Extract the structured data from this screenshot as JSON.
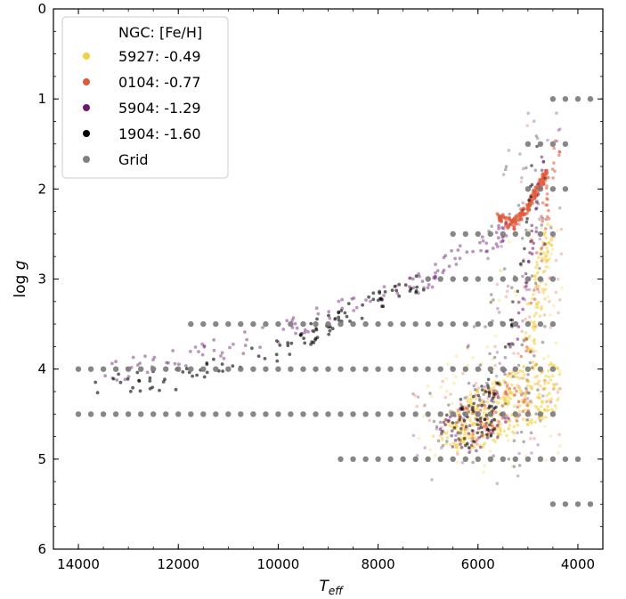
{
  "chart_data": {
    "type": "scatter",
    "xlabel_base": "T",
    "xlabel_sub": "eff",
    "ylabel_base": "log ",
    "ylabel_var": "g",
    "xlim": [
      14500,
      3500
    ],
    "ylim": [
      0,
      6
    ],
    "x_ticks": [
      14000,
      12000,
      10000,
      8000,
      6000,
      4000
    ],
    "y_ticks": [
      0,
      1,
      2,
      3,
      4,
      5,
      6
    ],
    "grid": false,
    "legend": {
      "position": "top-left",
      "title": "NGC: [Fe/H]",
      "entries": [
        {
          "label": "5927: -0.49",
          "color": "#f4d03f"
        },
        {
          "label": "0104: -0.77",
          "color": "#e05a3a"
        },
        {
          "label": "5904: -1.29",
          "color": "#6a1b6e"
        },
        {
          "label": "1904: -1.60",
          "color": "#000000"
        },
        {
          "label": "Grid",
          "color": "#808080"
        }
      ]
    },
    "grid_points": [
      {
        "logg": 1.0,
        "teff": [
          4500,
          4250,
          4000,
          3750
        ]
      },
      {
        "logg": 1.5,
        "teff": [
          5000,
          4750,
          4500,
          4250
        ]
      },
      {
        "logg": 2.0,
        "teff": [
          5000,
          4750,
          4500,
          4250
        ]
      },
      {
        "logg": 2.5,
        "teff": [
          6500,
          6250,
          6000,
          5750,
          5500,
          5250,
          5000,
          4750,
          4500
        ]
      },
      {
        "logg": 3.0,
        "teff": [
          7000,
          6750,
          6500,
          6250,
          6000,
          5750,
          5500,
          5250,
          5000,
          4750,
          4500
        ]
      },
      {
        "logg": 3.5,
        "teff": [
          11750,
          11500,
          11250,
          11000,
          10750,
          10500,
          10250,
          10000,
          9750,
          9500,
          9250,
          9000,
          8750,
          8500,
          8250,
          8000,
          7750,
          7500,
          7250,
          7000,
          6750,
          6500,
          6250,
          6000,
          5750,
          5500,
          5250,
          5000,
          4750,
          4500
        ]
      },
      {
        "logg": 4.0,
        "teff": [
          14000,
          13750,
          13500,
          13250,
          13000,
          12750,
          12500,
          12250,
          12000,
          11750,
          11500,
          11250,
          11000,
          10750,
          10500,
          10250,
          10000,
          9750,
          9500,
          9250,
          9000,
          8750,
          8500,
          8250,
          8000,
          7750,
          7500,
          7250,
          7000,
          6750,
          6500,
          6250,
          6000,
          5750,
          5500,
          5250,
          5000,
          4750,
          4500
        ]
      },
      {
        "logg": 4.5,
        "teff": [
          14000,
          13750,
          13500,
          13250,
          13000,
          12750,
          12500,
          12250,
          12000,
          11750,
          11500,
          11250,
          11000,
          10750,
          10500,
          10250,
          10000,
          9750,
          9500,
          9250,
          9000,
          8750,
          8500,
          8250,
          8000,
          7750,
          7500,
          7250,
          7000,
          6750,
          6500,
          6250,
          6000,
          5750,
          5500,
          5250,
          5000,
          4750,
          4500
        ]
      },
      {
        "logg": 5.0,
        "teff": [
          8750,
          8500,
          8250,
          8000,
          7750,
          7500,
          7250,
          7000,
          6750,
          6500,
          6250,
          6000,
          5750,
          5500,
          5250,
          5000,
          4750,
          4500,
          4250,
          4000
        ]
      },
      {
        "logg": 5.5,
        "teff": [
          4500,
          4250,
          4000,
          3750
        ]
      }
    ],
    "series": [
      {
        "name": "5927: -0.49",
        "color": "#f4d03f",
        "density_path": [
          [
            6900,
            4.75
          ],
          [
            6400,
            4.95
          ],
          [
            5800,
            4.85
          ],
          [
            5200,
            4.7
          ],
          [
            4800,
            4.6
          ],
          [
            4400,
            4.45
          ],
          [
            4350,
            3.9
          ],
          [
            4800,
            3.95
          ],
          [
            5100,
            3.7
          ],
          [
            5000,
            3.2
          ],
          [
            4650,
            2.4
          ],
          [
            4450,
            2.3
          ],
          [
            4600,
            3.1
          ],
          [
            4900,
            3.9
          ],
          [
            5400,
            4.05
          ],
          [
            6000,
            4.2
          ],
          [
            6600,
            4.5
          ]
        ],
        "scatter_box": {
          "teff": [
            4300,
            7200
          ],
          "logg": [
            2.3,
            5.2
          ]
        }
      },
      {
        "name": "0104: -0.77",
        "color": "#e05a3a",
        "density_path": [
          [
            6700,
            4.6
          ],
          [
            6200,
            4.85
          ],
          [
            5400,
            4.7
          ],
          [
            4800,
            4.4
          ],
          [
            5300,
            4.2
          ],
          [
            4950,
            3.2
          ],
          [
            4700,
            2.0
          ],
          [
            4450,
            1.3
          ],
          [
            4350,
            1.6
          ],
          [
            4600,
            2.4
          ],
          [
            5000,
            3.8
          ],
          [
            5700,
            4.2
          ],
          [
            6400,
            4.4
          ]
        ],
        "scatter_box": {
          "teff": [
            4200,
            7300
          ],
          "logg": [
            1.2,
            5.0
          ]
        },
        "branch": [
          [
            5600,
            2.3
          ],
          [
            5300,
            2.4
          ],
          [
            5000,
            2.2
          ],
          [
            4800,
            2.0
          ],
          [
            4600,
            1.8
          ]
        ]
      },
      {
        "name": "5904: -1.29",
        "color": "#6a1b6e",
        "density_path": [
          [
            6800,
            4.7
          ],
          [
            6300,
            5.0
          ],
          [
            5600,
            4.85
          ],
          [
            5300,
            4.45
          ],
          [
            5400,
            3.8
          ],
          [
            5000,
            2.8
          ],
          [
            4850,
            2.0
          ],
          [
            4700,
            1.5
          ],
          [
            4600,
            1.6
          ],
          [
            4800,
            2.4
          ],
          [
            5200,
            3.7
          ],
          [
            5800,
            4.3
          ],
          [
            6600,
            4.45
          ]
        ],
        "scatter_box": {
          "teff": [
            4300,
            7600
          ],
          "logg": [
            1.0,
            5.5
          ]
        },
        "hb": [
          [
            13500,
            4.05
          ],
          [
            12000,
            3.9
          ],
          [
            10000,
            3.6
          ],
          [
            8500,
            3.3
          ],
          [
            7000,
            3.0
          ],
          [
            6000,
            2.6
          ],
          [
            5400,
            2.5
          ]
        ]
      },
      {
        "name": "1904: -1.60",
        "color": "#000000",
        "density_path": [
          [
            6700,
            4.55
          ],
          [
            6200,
            4.9
          ],
          [
            5700,
            4.75
          ],
          [
            5500,
            4.3
          ],
          [
            5500,
            3.9
          ],
          [
            5200,
            3.0
          ],
          [
            5000,
            2.0
          ],
          [
            4900,
            1.4
          ],
          [
            4800,
            1.5
          ],
          [
            5000,
            2.5
          ],
          [
            5350,
            3.7
          ],
          [
            6000,
            4.25
          ],
          [
            6600,
            4.4
          ]
        ],
        "scatter_box": {
          "teff": [
            4600,
            7000
          ],
          "logg": [
            1.3,
            5.1
          ]
        },
        "hb": [
          [
            13800,
            4.2
          ],
          [
            12000,
            4.1
          ],
          [
            10000,
            3.8
          ],
          [
            9000,
            3.5
          ],
          [
            8000,
            3.25
          ],
          [
            7000,
            3.0
          ]
        ]
      }
    ]
  }
}
